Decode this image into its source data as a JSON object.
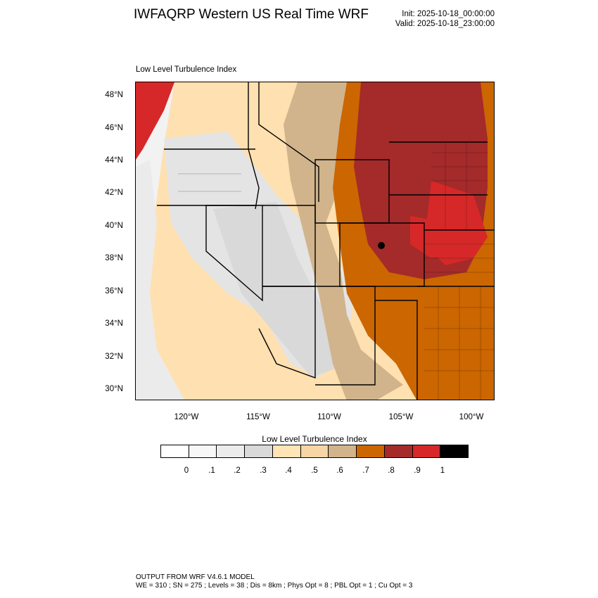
{
  "header": {
    "title": "IWFAQRP Western US Real Time WRF",
    "init": "Init: 2025-10-18_00:00:00",
    "valid": "Valid: 2025-10-18_23:00:00"
  },
  "map": {
    "field_label": "Low Level Turbulence Index",
    "lat_labels": [
      "48°N",
      "46°N",
      "44°N",
      "42°N",
      "40°N",
      "38°N",
      "36°N",
      "34°N",
      "32°N",
      "30°N"
    ],
    "lon_labels": [
      "120°W",
      "115°W",
      "110°W",
      "105°W",
      "100°W"
    ]
  },
  "legend": {
    "title": "Low Level Turbulence Index",
    "colors": [
      "#ffffff",
      "#f7f7f7",
      "#ececec",
      "#d9d9d9",
      "#ffe4b5",
      "#f7d5a5",
      "#d1b48c",
      "#cc6600",
      "#a52a2a",
      "#d62828",
      "#000000"
    ],
    "ticks": [
      "0",
      ".1",
      ".2",
      ".3",
      ".4",
      ".5",
      ".6",
      ".7",
      ".8",
      ".9",
      "1"
    ]
  },
  "footer": {
    "line1": "OUTPUT FROM WRF V4.6.1 MODEL",
    "line2": "WE = 310 ; SN = 275 ; Levels = 38 ; Dis = 8km ; Phys Opt = 8 ; PBL Opt = 1 ; Cu Opt = 3"
  }
}
